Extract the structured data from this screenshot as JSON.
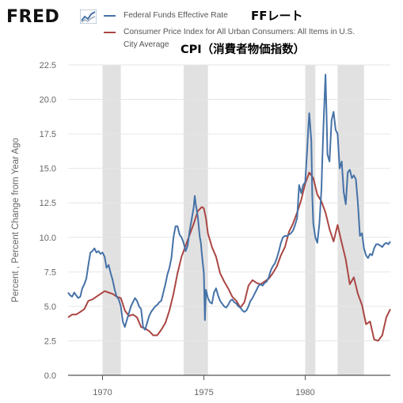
{
  "header": {
    "logo_text": "FRED",
    "logo_icon": "line-chart-icon"
  },
  "legend": {
    "items": [
      {
        "label": "Federal Funds Effective Rate",
        "color": "#4572a7"
      },
      {
        "label_line1": "Consumer Price Index for All Urban Consumers: All Items in U.S.",
        "label_line2": "City Average",
        "color": "#aa4643"
      }
    ]
  },
  "annotations": {
    "ff_note": "FFレート",
    "cpi_note": "CPI（消費者物価指数）"
  },
  "chart_data": {
    "type": "line",
    "ylabel": "Percent , Percent Change from Year Ago",
    "xlabel": "",
    "ylim": [
      0,
      22.5
    ],
    "xlim": [
      1968.3,
      1984.2
    ],
    "yticks": [
      "0.0",
      "2.5",
      "5.0",
      "7.5",
      "10.0",
      "12.5",
      "15.0",
      "17.5",
      "20.0",
      "22.5"
    ],
    "xticks": [
      "1970",
      "1975",
      "1980"
    ],
    "recessions": [
      [
        1970.0,
        1970.9
      ],
      [
        1974.0,
        1975.2
      ],
      [
        1980.0,
        1980.5
      ],
      [
        1981.6,
        1982.9
      ]
    ],
    "grid": "horizontal",
    "series": [
      {
        "name": "Federal Funds Effective Rate",
        "color": "#4572a7",
        "points": [
          [
            1968.3,
            6.0
          ],
          [
            1968.4,
            5.8
          ],
          [
            1968.5,
            5.7
          ],
          [
            1968.6,
            6.0
          ],
          [
            1968.7,
            5.8
          ],
          [
            1968.8,
            5.6
          ],
          [
            1968.9,
            5.7
          ],
          [
            1969.0,
            6.3
          ],
          [
            1969.1,
            6.6
          ],
          [
            1969.2,
            7.0
          ],
          [
            1969.3,
            8.0
          ],
          [
            1969.4,
            8.9
          ],
          [
            1969.5,
            9.0
          ],
          [
            1969.6,
            9.2
          ],
          [
            1969.7,
            8.9
          ],
          [
            1969.8,
            9.0
          ],
          [
            1969.9,
            8.8
          ],
          [
            1970.0,
            8.9
          ],
          [
            1970.1,
            8.6
          ],
          [
            1970.2,
            7.8
          ],
          [
            1970.3,
            8.0
          ],
          [
            1970.4,
            7.4
          ],
          [
            1970.5,
            6.9
          ],
          [
            1970.6,
            6.2
          ],
          [
            1970.7,
            5.7
          ],
          [
            1970.8,
            5.5
          ],
          [
            1970.9,
            5.0
          ],
          [
            1971.0,
            3.9
          ],
          [
            1971.1,
            3.5
          ],
          [
            1971.2,
            4.0
          ],
          [
            1971.3,
            4.5
          ],
          [
            1971.4,
            5.0
          ],
          [
            1971.5,
            5.3
          ],
          [
            1971.6,
            5.6
          ],
          [
            1971.7,
            5.4
          ],
          [
            1971.8,
            5.0
          ],
          [
            1971.9,
            4.8
          ],
          [
            1972.0,
            3.5
          ],
          [
            1972.1,
            3.3
          ],
          [
            1972.2,
            3.8
          ],
          [
            1972.3,
            4.3
          ],
          [
            1972.4,
            4.6
          ],
          [
            1972.5,
            4.8
          ],
          [
            1972.6,
            5.0
          ],
          [
            1972.7,
            5.1
          ],
          [
            1972.8,
            5.3
          ],
          [
            1972.9,
            5.4
          ],
          [
            1973.0,
            6.0
          ],
          [
            1973.1,
            6.6
          ],
          [
            1973.2,
            7.3
          ],
          [
            1973.3,
            7.8
          ],
          [
            1973.4,
            8.5
          ],
          [
            1973.5,
            10.0
          ],
          [
            1973.6,
            10.8
          ],
          [
            1973.7,
            10.8
          ],
          [
            1973.8,
            10.2
          ],
          [
            1973.9,
            10.0
          ],
          [
            1974.0,
            9.6
          ],
          [
            1974.1,
            9.0
          ],
          [
            1974.2,
            9.4
          ],
          [
            1974.3,
            10.5
          ],
          [
            1974.4,
            11.3
          ],
          [
            1974.5,
            12.2
          ],
          [
            1974.55,
            13.0
          ],
          [
            1974.6,
            12.4
          ],
          [
            1974.7,
            11.5
          ],
          [
            1974.8,
            10.0
          ],
          [
            1974.85,
            9.6
          ],
          [
            1974.9,
            8.8
          ],
          [
            1975.0,
            7.4
          ],
          [
            1975.05,
            4.0
          ],
          [
            1975.1,
            6.2
          ],
          [
            1975.2,
            5.6
          ],
          [
            1975.3,
            5.3
          ],
          [
            1975.4,
            5.2
          ],
          [
            1975.5,
            6.0
          ],
          [
            1975.6,
            6.3
          ],
          [
            1975.7,
            5.8
          ],
          [
            1975.8,
            5.4
          ],
          [
            1975.9,
            5.2
          ],
          [
            1976.0,
            5.0
          ],
          [
            1976.1,
            4.9
          ],
          [
            1976.2,
            5.1
          ],
          [
            1976.3,
            5.4
          ],
          [
            1976.4,
            5.5
          ],
          [
            1976.5,
            5.3
          ],
          [
            1976.6,
            5.2
          ],
          [
            1976.7,
            5.0
          ],
          [
            1976.8,
            4.9
          ],
          [
            1976.9,
            4.7
          ],
          [
            1977.0,
            4.6
          ],
          [
            1977.1,
            4.7
          ],
          [
            1977.2,
            5.0
          ],
          [
            1977.3,
            5.4
          ],
          [
            1977.4,
            5.6
          ],
          [
            1977.5,
            5.9
          ],
          [
            1977.6,
            6.2
          ],
          [
            1977.7,
            6.5
          ],
          [
            1977.8,
            6.6
          ],
          [
            1977.9,
            6.5
          ],
          [
            1978.0,
            6.7
          ],
          [
            1978.1,
            6.8
          ],
          [
            1978.2,
            7.1
          ],
          [
            1978.3,
            7.6
          ],
          [
            1978.4,
            7.9
          ],
          [
            1978.5,
            8.1
          ],
          [
            1978.6,
            8.5
          ],
          [
            1978.7,
            9.0
          ],
          [
            1978.8,
            9.6
          ],
          [
            1978.9,
            10.0
          ],
          [
            1979.0,
            10.1
          ],
          [
            1979.1,
            10.1
          ],
          [
            1979.2,
            10.2
          ],
          [
            1979.3,
            10.3
          ],
          [
            1979.4,
            10.5
          ],
          [
            1979.5,
            10.9
          ],
          [
            1979.6,
            11.4
          ],
          [
            1979.7,
            13.8
          ],
          [
            1979.8,
            13.2
          ],
          [
            1979.9,
            13.8
          ],
          [
            1980.0,
            14.0
          ],
          [
            1980.1,
            16.5
          ],
          [
            1980.15,
            17.8
          ],
          [
            1980.2,
            19.0
          ],
          [
            1980.3,
            17.0
          ],
          [
            1980.35,
            13.0
          ],
          [
            1980.4,
            11.0
          ],
          [
            1980.5,
            10.0
          ],
          [
            1980.6,
            9.6
          ],
          [
            1980.7,
            11.0
          ],
          [
            1980.8,
            13.5
          ],
          [
            1980.85,
            15.8
          ],
          [
            1980.9,
            18.0
          ],
          [
            1981.0,
            21.8
          ],
          [
            1981.05,
            19.0
          ],
          [
            1981.1,
            16.0
          ],
          [
            1981.2,
            15.5
          ],
          [
            1981.3,
            18.5
          ],
          [
            1981.4,
            19.1
          ],
          [
            1981.5,
            17.8
          ],
          [
            1981.6,
            17.5
          ],
          [
            1981.7,
            15.0
          ],
          [
            1981.8,
            15.5
          ],
          [
            1981.9,
            13.3
          ],
          [
            1982.0,
            12.4
          ],
          [
            1982.1,
            14.7
          ],
          [
            1982.2,
            14.9
          ],
          [
            1982.3,
            14.3
          ],
          [
            1982.4,
            14.5
          ],
          [
            1982.5,
            14.2
          ],
          [
            1982.6,
            12.5
          ],
          [
            1982.7,
            10.1
          ],
          [
            1982.8,
            10.3
          ],
          [
            1982.9,
            9.2
          ],
          [
            1983.0,
            8.7
          ],
          [
            1983.1,
            8.5
          ],
          [
            1983.2,
            8.8
          ],
          [
            1983.3,
            8.7
          ],
          [
            1983.4,
            9.2
          ],
          [
            1983.5,
            9.5
          ],
          [
            1983.6,
            9.5
          ],
          [
            1983.7,
            9.4
          ],
          [
            1983.8,
            9.3
          ],
          [
            1983.9,
            9.5
          ],
          [
            1984.0,
            9.6
          ],
          [
            1984.1,
            9.5
          ],
          [
            1984.2,
            9.7
          ]
        ]
      },
      {
        "name": "Consumer Price Index for All Urban Consumers: All Items in U.S. City Average",
        "color": "#aa4643",
        "points": [
          [
            1968.3,
            4.2
          ],
          [
            1968.5,
            4.4
          ],
          [
            1968.7,
            4.4
          ],
          [
            1968.9,
            4.6
          ],
          [
            1969.1,
            4.8
          ],
          [
            1969.3,
            5.4
          ],
          [
            1969.5,
            5.5
          ],
          [
            1969.7,
            5.7
          ],
          [
            1969.9,
            5.9
          ],
          [
            1970.1,
            6.1
          ],
          [
            1970.3,
            6.0
          ],
          [
            1970.5,
            5.9
          ],
          [
            1970.7,
            5.7
          ],
          [
            1970.9,
            5.6
          ],
          [
            1971.1,
            4.7
          ],
          [
            1971.3,
            4.3
          ],
          [
            1971.5,
            4.4
          ],
          [
            1971.7,
            4.2
          ],
          [
            1971.9,
            3.5
          ],
          [
            1972.1,
            3.4
          ],
          [
            1972.3,
            3.2
          ],
          [
            1972.5,
            2.9
          ],
          [
            1972.7,
            2.9
          ],
          [
            1972.9,
            3.3
          ],
          [
            1973.1,
            3.8
          ],
          [
            1973.3,
            4.7
          ],
          [
            1973.5,
            5.9
          ],
          [
            1973.7,
            7.4
          ],
          [
            1973.9,
            8.6
          ],
          [
            1974.1,
            9.4
          ],
          [
            1974.3,
            10.2
          ],
          [
            1974.5,
            11.0
          ],
          [
            1974.7,
            11.9
          ],
          [
            1974.9,
            12.2
          ],
          [
            1975.0,
            12.1
          ],
          [
            1975.1,
            11.4
          ],
          [
            1975.2,
            10.3
          ],
          [
            1975.4,
            9.3
          ],
          [
            1975.6,
            8.6
          ],
          [
            1975.8,
            7.4
          ],
          [
            1976.0,
            6.8
          ],
          [
            1976.2,
            6.3
          ],
          [
            1976.4,
            5.7
          ],
          [
            1976.6,
            5.4
          ],
          [
            1976.8,
            4.9
          ],
          [
            1977.0,
            5.3
          ],
          [
            1977.2,
            6.5
          ],
          [
            1977.4,
            6.9
          ],
          [
            1977.6,
            6.7
          ],
          [
            1977.8,
            6.6
          ],
          [
            1978.0,
            6.8
          ],
          [
            1978.2,
            7.0
          ],
          [
            1978.4,
            7.4
          ],
          [
            1978.6,
            7.9
          ],
          [
            1978.8,
            8.7
          ],
          [
            1979.0,
            9.3
          ],
          [
            1979.2,
            10.4
          ],
          [
            1979.4,
            11.0
          ],
          [
            1979.6,
            11.8
          ],
          [
            1979.8,
            12.7
          ],
          [
            1980.0,
            13.9
          ],
          [
            1980.2,
            14.7
          ],
          [
            1980.4,
            14.3
          ],
          [
            1980.6,
            13.1
          ],
          [
            1980.8,
            12.6
          ],
          [
            1981.0,
            11.8
          ],
          [
            1981.2,
            10.6
          ],
          [
            1981.4,
            9.7
          ],
          [
            1981.6,
            10.9
          ],
          [
            1981.8,
            9.6
          ],
          [
            1982.0,
            8.4
          ],
          [
            1982.2,
            6.6
          ],
          [
            1982.4,
            7.1
          ],
          [
            1982.6,
            5.9
          ],
          [
            1982.8,
            5.1
          ],
          [
            1983.0,
            3.7
          ],
          [
            1983.2,
            3.9
          ],
          [
            1983.4,
            2.6
          ],
          [
            1983.6,
            2.5
          ],
          [
            1983.8,
            2.9
          ],
          [
            1984.0,
            4.2
          ],
          [
            1984.2,
            4.8
          ]
        ]
      }
    ]
  }
}
